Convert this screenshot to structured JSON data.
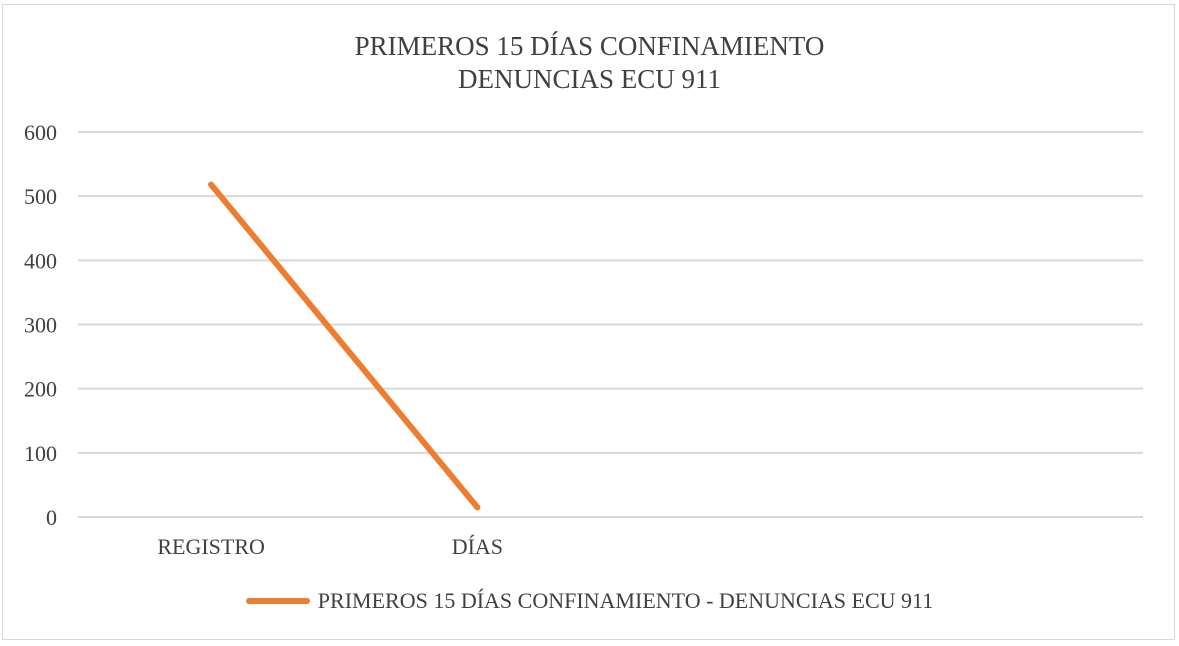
{
  "chart_data": {
    "type": "line",
    "title": "PRIMEROS 15 DÍAS CONFINAMIENTO",
    "subtitle": "DENUNCIAS ECU 911",
    "categories": [
      "REGISTRO",
      "DÍAS"
    ],
    "series": [
      {
        "name": "PRIMEROS 15 DÍAS CONFINAMIENTO - DENUNCIAS ECU 911",
        "values": [
          518,
          15
        ],
        "color": "#ED7D31"
      }
    ],
    "y_ticks": [
      "0",
      "100",
      "200",
      "300",
      "400",
      "500",
      "600"
    ],
    "ylim": [
      0,
      600
    ],
    "grid": true,
    "legend_position": "bottom"
  }
}
